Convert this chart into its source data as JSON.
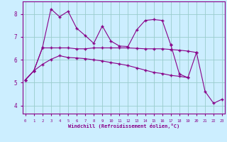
{
  "xlabel": "Windchill (Refroidissement éolien,°C)",
  "bg_color": "#cceeff",
  "line_color": "#880088",
  "grid_color": "#99cccc",
  "x_ticks": [
    0,
    1,
    2,
    3,
    4,
    5,
    6,
    7,
    8,
    9,
    10,
    11,
    12,
    13,
    14,
    15,
    16,
    17,
    18,
    19,
    20,
    21,
    22,
    23
  ],
  "y_ticks": [
    4,
    5,
    6,
    7,
    8
  ],
  "xlim": [
    -0.3,
    23.3
  ],
  "ylim": [
    3.65,
    8.55
  ],
  "series_flat_x": [
    0,
    1,
    2,
    3,
    4,
    5,
    6,
    7,
    8,
    9,
    10,
    11,
    12,
    13,
    14,
    15,
    16,
    17,
    18,
    19,
    20
  ],
  "series_flat_y": [
    5.12,
    5.52,
    6.52,
    6.52,
    6.52,
    6.52,
    6.48,
    6.48,
    6.52,
    6.52,
    6.52,
    6.52,
    6.52,
    6.5,
    6.48,
    6.48,
    6.48,
    6.45,
    6.42,
    6.38,
    6.32
  ],
  "series_peak_x": [
    0,
    1,
    2,
    3,
    4,
    5,
    6,
    7,
    8,
    9,
    10,
    11,
    12,
    13,
    14,
    15,
    16,
    17
  ],
  "series_peak_y": [
    5.12,
    5.52,
    6.52,
    8.22,
    7.88,
    8.12,
    7.38,
    7.06,
    6.72,
    7.48,
    6.82,
    6.6,
    6.58,
    7.3,
    7.72,
    7.76,
    7.72,
    6.65
  ],
  "series_low_x": [
    0,
    1,
    2,
    3,
    4,
    5,
    6,
    7,
    8,
    9,
    10,
    11,
    12,
    13,
    14,
    15,
    16,
    17,
    18,
    19
  ],
  "series_low_y": [
    5.12,
    5.52,
    5.8,
    6.02,
    6.18,
    6.1,
    6.08,
    6.05,
    6.0,
    5.95,
    5.88,
    5.82,
    5.75,
    5.65,
    5.55,
    5.45,
    5.4,
    5.32,
    5.28,
    5.22
  ],
  "series_end_x": [
    17,
    18,
    19,
    20,
    21,
    22,
    23
  ],
  "series_end_y": [
    6.65,
    5.38,
    5.22,
    6.32,
    4.62,
    4.1,
    4.28
  ]
}
